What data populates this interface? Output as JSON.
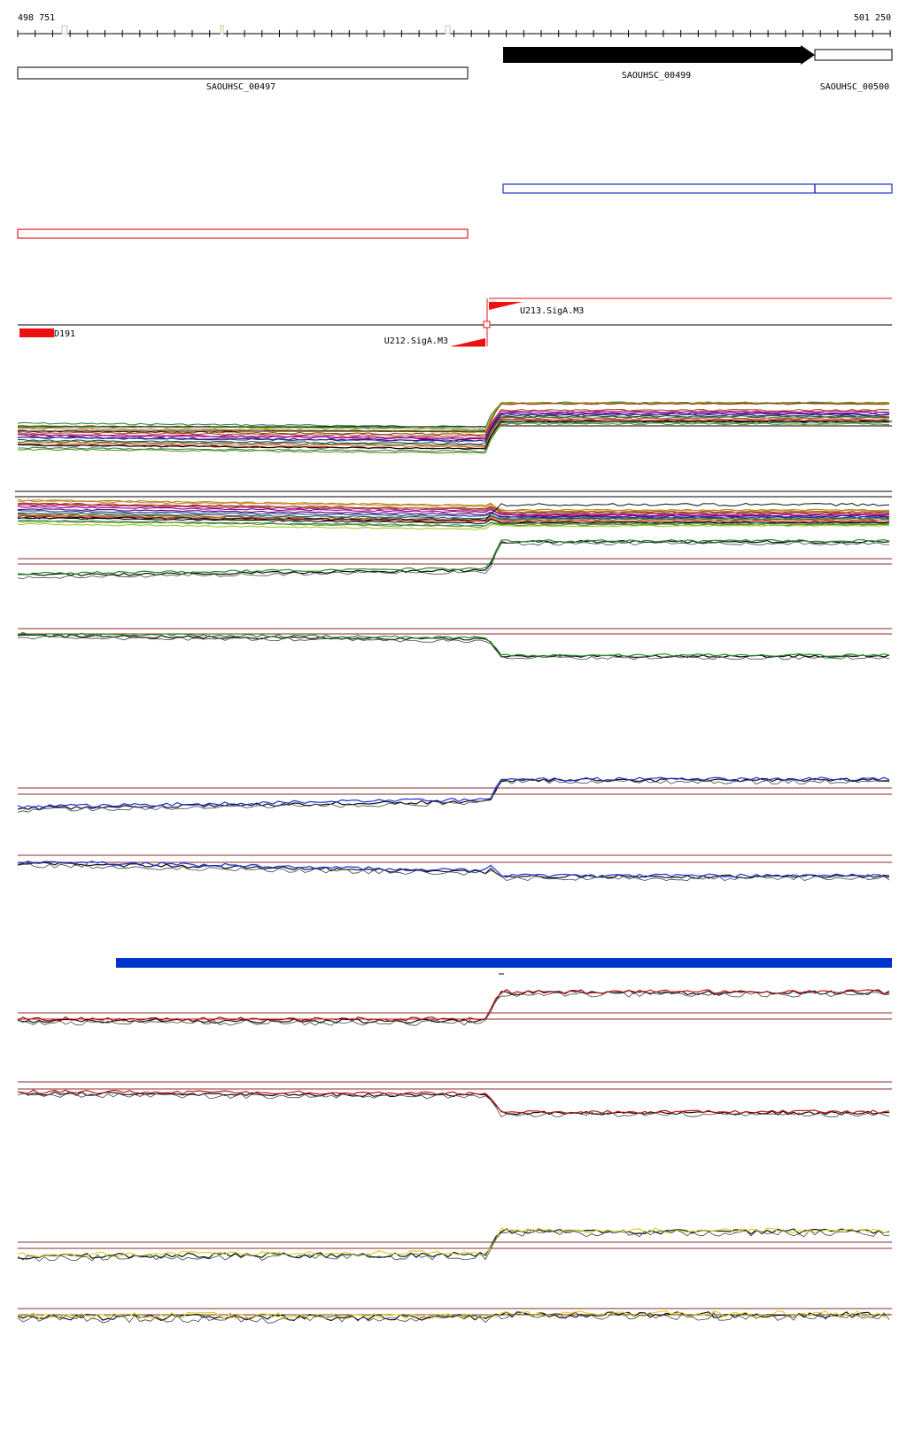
{
  "ruler": {
    "start_label": "498 751",
    "end_label": "501 250"
  },
  "genes": [
    {
      "label": "SAOUHSC_00497",
      "style": "open"
    },
    {
      "label": "SAOUHSC_00499",
      "style": "filled-arrow"
    },
    {
      "label": "SAOUHSC_00500",
      "style": "open"
    }
  ],
  "features": {
    "region_d": "D191",
    "promoter_up": "U213.SigA.M3",
    "promoter_down": "U212.SigA.M3"
  },
  "colors": {
    "gene_fill": "#000000",
    "blue_box": "#2233cc",
    "red_box": "#dd2222",
    "feature_red": "#ee1111",
    "bar_blue": "#0033cc",
    "threshold": "#8b2a2a",
    "track_green": "#1e8f1e",
    "track_blue": "#1b2fd6",
    "track_red": "#c41414",
    "track_yellow": "#d9d420",
    "track_black": "#111111"
  },
  "icons": {
    "promoter": "triangle-flag-icon",
    "position_marker": "small-square-icon"
  }
}
